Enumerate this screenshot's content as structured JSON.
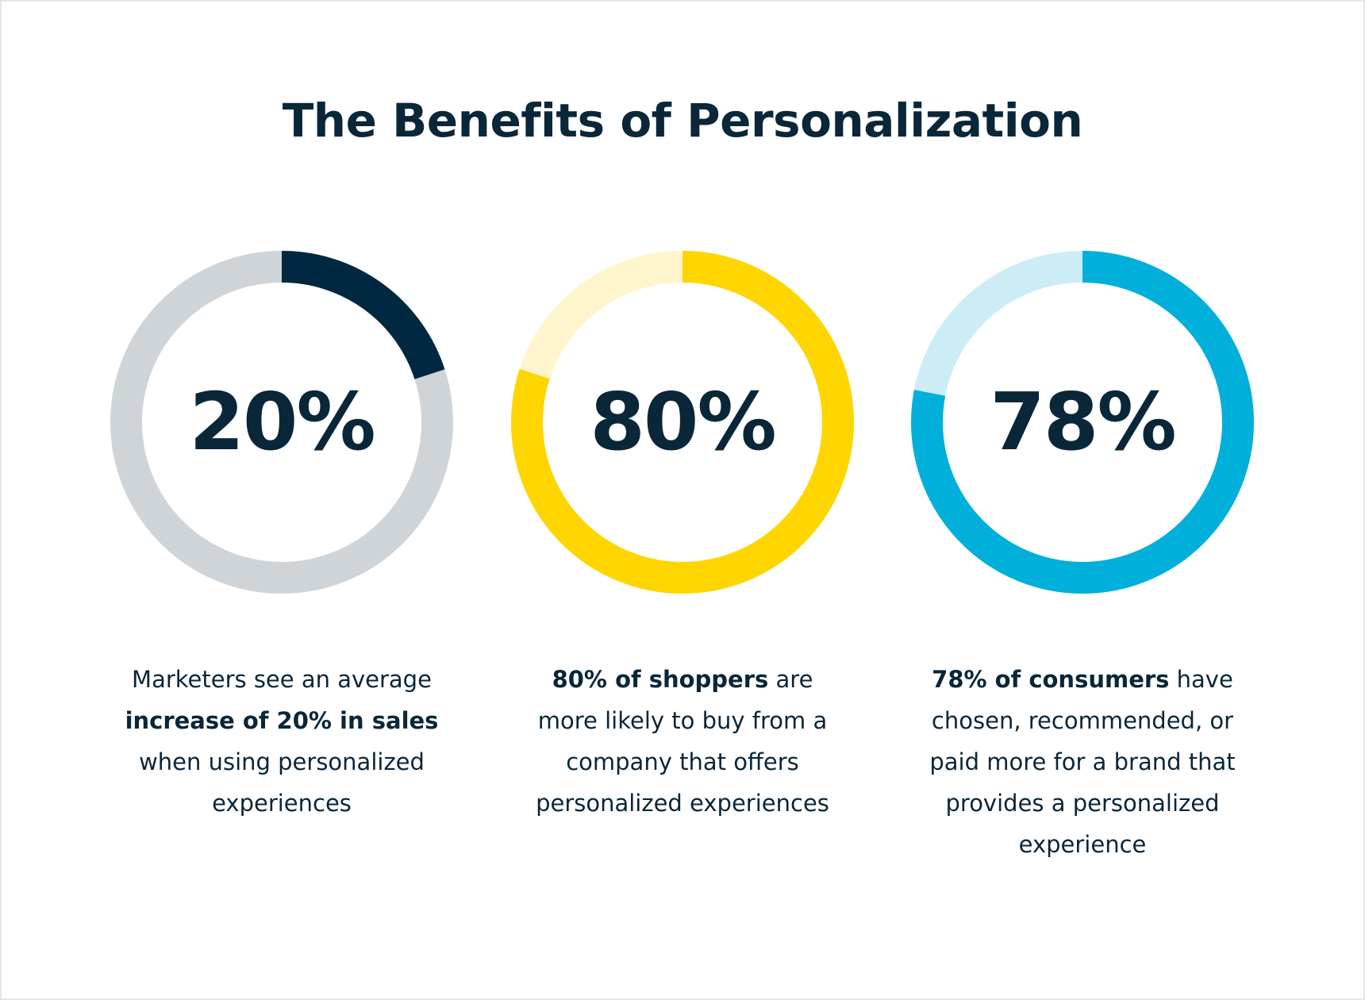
{
  "title": "The Benefits of Personalization",
  "colors": {
    "text": "#0a2639"
  },
  "chart_data": [
    {
      "type": "pie",
      "style": "donut",
      "value": 20,
      "label": "20%",
      "colors": {
        "fill": "#002840",
        "track": "#cfd4d8"
      },
      "caption": [
        {
          "text": "Marketers see an average ",
          "bold": false
        },
        {
          "text": "increase of 20% in sales",
          "bold": true
        },
        {
          "text": " when using personalized experiences",
          "bold": false
        }
      ]
    },
    {
      "type": "pie",
      "style": "donut",
      "value": 80,
      "label": "80%",
      "colors": {
        "fill": "#ffd500",
        "track": "#fff5cc"
      },
      "caption": [
        {
          "text": "80% of shoppers",
          "bold": true
        },
        {
          "text": " are more likely to buy from a company that offers personalized experiences",
          "bold": false
        }
      ]
    },
    {
      "type": "pie",
      "style": "donut",
      "value": 78,
      "label": "78%",
      "colors": {
        "fill": "#00b0da",
        "track": "#ccedf6"
      },
      "caption": [
        {
          "text": "78% of consumers",
          "bold": true
        },
        {
          "text": " have chosen, recommended, or paid more for a brand that provides a personalized experience",
          "bold": false
        }
      ]
    }
  ]
}
